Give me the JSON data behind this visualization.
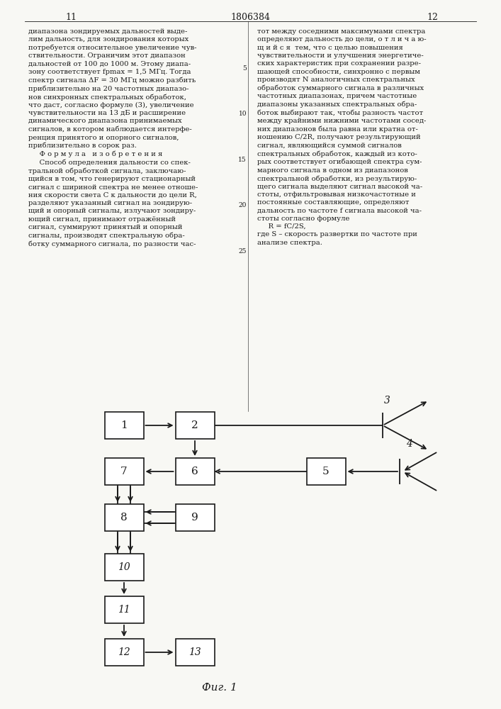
{
  "page_left": "11",
  "page_right": "12",
  "patent_number": "1806384",
  "fig_caption": "Фиг. 1",
  "bg_color": "#f8f8f4",
  "text_color": "#1a1a1a",
  "left_col_text": "диапазона зондируемых дальностей выде-\nлим дальность, для зондирования которых\nпотребуется относительное увеличение чув-\nствительности. Ограничим этот диапазон\nдальностей от 100 до 1000 м. Этому диапа-\nзону соответствует fрmax = 1,5 МГц. Тогда\nспектр сигнала ΔF = 30 МГц можно разбить\nприблизительно на 20 частотных диапазо-\nнов синхронных спектральных обработок,\nчто даст, согласно формуле (3), увеличение\nчувствительности на 13 дБ и расширение\nдинамического диапазона принимаемых\nсигналов, в котором наблюдается интерфе-\nренция принятого и опорного сигналов,\nприблизительно в сорок раз.\n     Ф о р м у л а   и з о б р е т е н и я\n     Способ определения дальности со спек-\nтральной обработкой сигнала, заключаю-\nщийся в том, что генерируют стационарный\nсигнал с шириной спектра не менее отноше-\nния скорости света С к дальности до цели R,\nразделяют указанный сигнал на зондирую-\nщий и опорный сигналы, излучают зондиру-\nющий сигнал, принимают отражённый\nсигнал, суммируют принятый и опорный\nсигналы, производят спектральную обра-\nботку суммарного сигнала, по разности час-",
  "right_col_text": "тот между соседними максимумами спектра\nопределяют дальность до цели, о т л и ч а ю-\nщ и й с я  тем, что с целью повышения\nчувствительности и улучшения энергетиче-\nских характеристик при сохранении разре-\nшающей способности, синхронно с первым\nпроизводят N аналогичных спектральных\nобработок суммарного сигнала в различных\nчастотных диапазонах, причем частотные\nдиапазоны указанных спектральных обра-\nботок выбирают так, чтобы разность частот\nмежду крайними нижними частотами сосед-\nних диапазонов была равна или кратна от-\nношению С/2R, получают результирующий\nсигнал, являющийся суммой сигналов\nспектральных обработок, каждый из кото-\nрых соответствует огибающей спектра сум-\nмарного сигнала в одном из диапазонов\nспектральной обработки, из результирую-\nщего сигнала выделяют сигнал высокой ча-\nстоты, отфильтровывая низкочастотные и\nпостоянные составляющие, определяют\nдальность по частоте f сигнала высокой ча-\nстоты согласно формуле\n     R = fC/2S,\nгде S – скорость развертки по частоте при\nанализе спектра.",
  "lineno_5": "5",
  "lineno_10": "10",
  "lineno_15": "15",
  "lineno_20": "20",
  "lineno_25": "25"
}
